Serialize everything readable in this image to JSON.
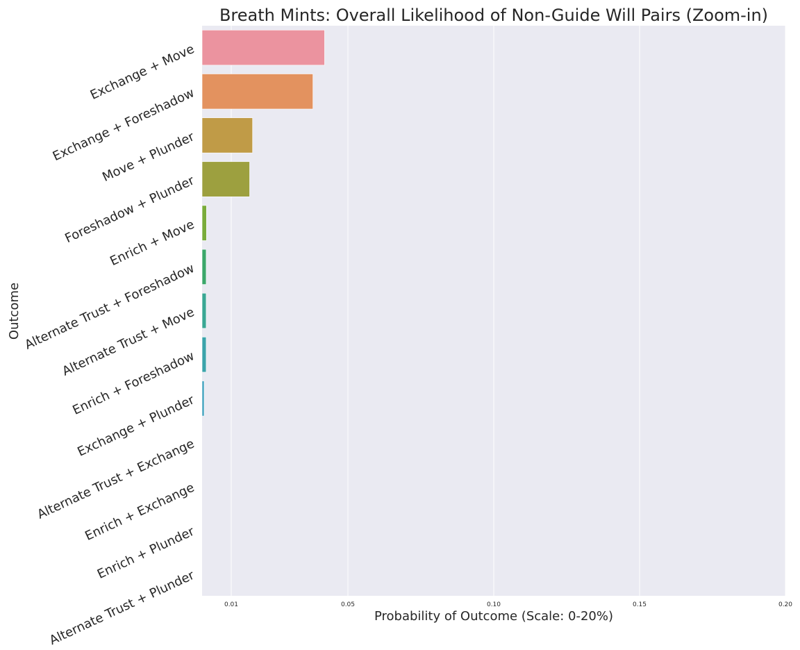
{
  "chart_data": {
    "type": "bar",
    "orientation": "horizontal",
    "title": "Breath Mints: Overall Likelihood of Non-Guide Will Pairs (Zoom-in)",
    "xlabel": "Probability of Outcome (Scale: 0-20%)",
    "ylabel": "Outcome",
    "xlim": [
      0,
      0.2
    ],
    "xticks": [
      0.01,
      0.05,
      0.1,
      0.15,
      0.2
    ],
    "xtick_labels": [
      "0.01",
      "0.05",
      "0.10",
      "0.15",
      "0.20"
    ],
    "grid": true,
    "categories": [
      "Exchange + Move",
      "Exchange + Foreshadow",
      "Move + Plunder",
      "Foreshadow + Plunder",
      "Enrich + Move",
      "Alternate Trust + Foreshadow",
      "Alternate Trust + Move",
      "Enrich + Foreshadow",
      "Exchange + Plunder",
      "Alternate Trust + Exchange",
      "Enrich + Exchange",
      "Enrich + Plunder",
      "Alternate Trust + Plunder"
    ],
    "values": [
      0.042,
      0.038,
      0.0173,
      0.0163,
      0.0015,
      0.0014,
      0.0014,
      0.0014,
      0.0007,
      0,
      0,
      0,
      0
    ],
    "colors": [
      "#eb939f",
      "#e3925f",
      "#c09b47",
      "#9da03f",
      "#7aac3b",
      "#3ba76a",
      "#3aa794",
      "#3ba4ab",
      "#3a9fbc",
      "#6fa1dd",
      "#a49aef",
      "#e186e9",
      "#eb8ac4"
    ],
    "background": "#eaeaf2",
    "grid_color": "#ffffff"
  }
}
